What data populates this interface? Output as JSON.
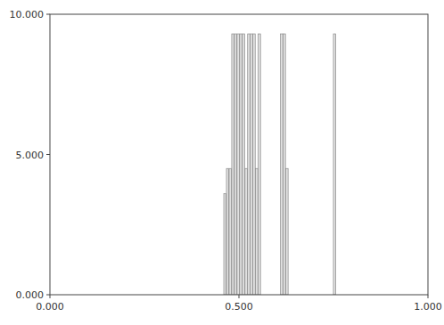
{
  "chart_data": {
    "type": "bar",
    "x": [
      0.463,
      0.47,
      0.477,
      0.484,
      0.491,
      0.498,
      0.505,
      0.512,
      0.519,
      0.526,
      0.533,
      0.54,
      0.547,
      0.554,
      0.613,
      0.62,
      0.627,
      0.753
    ],
    "values": [
      3.6,
      4.5,
      4.5,
      9.3,
      9.3,
      9.3,
      9.3,
      9.3,
      4.5,
      9.3,
      9.3,
      9.3,
      4.5,
      9.3,
      9.3,
      9.3,
      4.5,
      9.3
    ],
    "color": "#e0e0e0",
    "xlim": [
      0.0,
      1.0
    ],
    "ylim": [
      0.0,
      10.0
    ],
    "xticks": [
      {
        "value": 0.0,
        "label": "0.000"
      },
      {
        "value": 0.5,
        "label": "0.500"
      },
      {
        "value": 1.0,
        "label": "1.000"
      }
    ],
    "yticks": [
      {
        "value": 0.0,
        "label": "0.000"
      },
      {
        "value": 5.0,
        "label": "5.000"
      },
      {
        "value": 10.0,
        "label": "10.000"
      }
    ],
    "grid": false
  }
}
